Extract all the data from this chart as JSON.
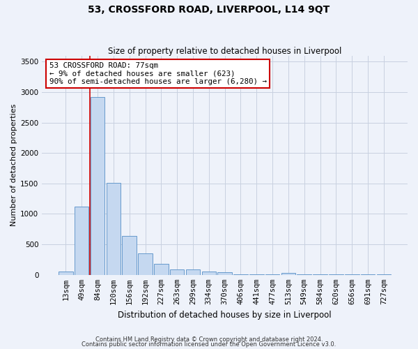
{
  "title": "53, CROSSFORD ROAD, LIVERPOOL, L14 9QT",
  "subtitle": "Size of property relative to detached houses in Liverpool",
  "xlabel": "Distribution of detached houses by size in Liverpool",
  "ylabel": "Number of detached properties",
  "bar_labels": [
    "13sqm",
    "49sqm",
    "84sqm",
    "120sqm",
    "156sqm",
    "192sqm",
    "227sqm",
    "263sqm",
    "299sqm",
    "334sqm",
    "370sqm",
    "406sqm",
    "441sqm",
    "477sqm",
    "513sqm",
    "549sqm",
    "584sqm",
    "620sqm",
    "656sqm",
    "691sqm",
    "727sqm"
  ],
  "bar_values": [
    55,
    1120,
    2920,
    1510,
    640,
    350,
    185,
    90,
    90,
    55,
    40,
    5,
    5,
    5,
    30,
    5,
    5,
    5,
    5,
    5,
    5
  ],
  "bar_color": "#c5d8f0",
  "bar_edgecolor": "#6699cc",
  "vline_x": 1.5,
  "vline_color": "#cc0000",
  "annotation_text": "53 CROSSFORD ROAD: 77sqm\n← 9% of detached houses are smaller (623)\n90% of semi-detached houses are larger (6,280) →",
  "annotation_box_color": "#ffffff",
  "annotation_box_edgecolor": "#cc0000",
  "ylim": [
    0,
    3600
  ],
  "yticks": [
    0,
    500,
    1000,
    1500,
    2000,
    2500,
    3000,
    3500
  ],
  "footer_line1": "Contains HM Land Registry data © Crown copyright and database right 2024.",
  "footer_line2": "Contains public sector information licensed under the Open Government Licence v3.0.",
  "background_color": "#eef2fa",
  "grid_color": "#c8d0e0",
  "title_fontsize": 10,
  "subtitle_fontsize": 8.5,
  "ylabel_fontsize": 8,
  "xlabel_fontsize": 8.5,
  "tick_fontsize": 7.5,
  "annotation_fontsize": 7.8,
  "footer_fontsize": 6
}
